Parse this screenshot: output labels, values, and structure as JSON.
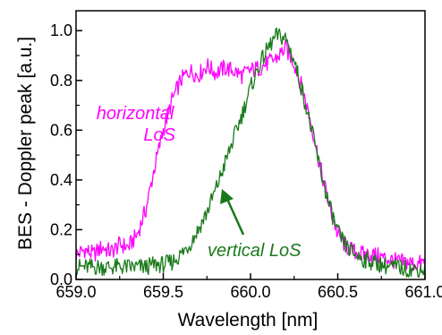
{
  "chart_data": {
    "type": "line",
    "title": "",
    "xlabel": "Wavelength [nm]",
    "ylabel": "BES - Doppler peak [a.u.]",
    "xlim": [
      659.0,
      661.0
    ],
    "ylim": [
      0.0,
      1.08
    ],
    "x_ticks": [
      "659.0",
      "659.5",
      "660.0",
      "660.5",
      "661.0"
    ],
    "y_ticks": [
      "0.0",
      "0.2",
      "0.4",
      "0.6",
      "0.8",
      "1.0"
    ],
    "grid": false,
    "legend": "none",
    "annotations": [
      {
        "lines": [
          "horizontal",
          "LoS"
        ],
        "color": "#ff00ff"
      },
      {
        "lines": [
          "vertical LoS"
        ],
        "color": "#1a7a1a"
      }
    ],
    "colors": {
      "horizontal": "#ff00ff",
      "vertical": "#1a7a1a"
    },
    "series": [
      {
        "key": "horizontal",
        "color": "#ff00ff",
        "x": [
          659.0,
          659.05,
          659.1,
          659.15,
          659.2,
          659.25,
          659.3,
          659.35,
          659.4,
          659.45,
          659.5,
          659.55,
          659.6,
          659.65,
          659.7,
          659.75,
          659.8,
          659.85,
          659.9,
          659.95,
          660.0,
          660.05,
          660.1,
          660.15,
          660.2,
          660.25,
          660.3,
          660.35,
          660.4,
          660.45,
          660.5,
          660.55,
          660.6,
          660.65,
          660.7,
          660.75,
          660.8,
          660.85,
          660.9,
          660.95,
          661.0
        ],
        "y": [
          0.1,
          0.12,
          0.1,
          0.13,
          0.11,
          0.14,
          0.13,
          0.18,
          0.28,
          0.45,
          0.6,
          0.72,
          0.8,
          0.84,
          0.82,
          0.86,
          0.83,
          0.85,
          0.84,
          0.82,
          0.84,
          0.85,
          0.87,
          0.89,
          0.93,
          0.87,
          0.76,
          0.62,
          0.45,
          0.3,
          0.18,
          0.13,
          0.11,
          0.1,
          0.1,
          0.09,
          0.08,
          0.07,
          0.07,
          0.06,
          0.07
        ]
      },
      {
        "key": "vertical",
        "color": "#1a7a1a",
        "x": [
          659.0,
          659.05,
          659.1,
          659.15,
          659.2,
          659.25,
          659.3,
          659.35,
          659.4,
          659.45,
          659.5,
          659.55,
          659.6,
          659.65,
          659.7,
          659.75,
          659.8,
          659.85,
          659.9,
          659.95,
          660.0,
          660.05,
          660.1,
          660.15,
          660.2,
          660.25,
          660.3,
          660.35,
          660.4,
          660.45,
          660.5,
          660.55,
          660.6,
          660.65,
          660.7,
          660.75,
          660.8,
          660.85,
          660.9,
          660.95,
          661.0
        ],
        "y": [
          0.05,
          0.05,
          0.05,
          0.05,
          0.05,
          0.05,
          0.05,
          0.05,
          0.05,
          0.06,
          0.06,
          0.07,
          0.1,
          0.14,
          0.2,
          0.27,
          0.36,
          0.46,
          0.56,
          0.66,
          0.77,
          0.86,
          0.93,
          0.98,
          0.97,
          0.88,
          0.75,
          0.6,
          0.44,
          0.3,
          0.19,
          0.13,
          0.1,
          0.08,
          0.07,
          0.06,
          0.05,
          0.05,
          0.04,
          0.04,
          0.04
        ]
      }
    ]
  }
}
